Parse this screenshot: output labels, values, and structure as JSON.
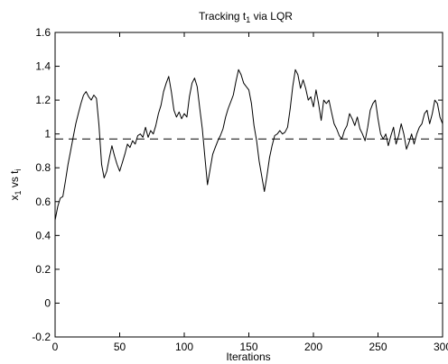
{
  "chart_data": {
    "type": "line",
    "title": "Tracking t",
    "title_sub": "1",
    "title_suffix": " via LQR",
    "xlabel": "Iterations",
    "ylabel_parts": [
      "x",
      "1",
      " vs t",
      "i"
    ],
    "xlim": [
      0,
      300
    ],
    "ylim": [
      -0.2,
      1.6
    ],
    "xticks": [
      0,
      50,
      100,
      150,
      200,
      250,
      300
    ],
    "yticks": [
      -0.2,
      0,
      0.2,
      0.4,
      0.6,
      0.8,
      1,
      1.2,
      1.4,
      1.6
    ],
    "ytick_labels": [
      "-0.2",
      "0",
      "0.2",
      "0.4",
      "0.6",
      "0.8",
      "1",
      "1.2",
      "1.4",
      "1.6"
    ],
    "grid": false,
    "series": [
      {
        "style": "solid",
        "color": "#000000",
        "points": [
          [
            0,
            0.49
          ],
          [
            2,
            0.57
          ],
          [
            4,
            0.62
          ],
          [
            6,
            0.63
          ],
          [
            8,
            0.72
          ],
          [
            10,
            0.82
          ],
          [
            12,
            0.9
          ],
          [
            14,
            0.98
          ],
          [
            16,
            1.06
          ],
          [
            18,
            1.12
          ],
          [
            20,
            1.18
          ],
          [
            22,
            1.23
          ],
          [
            24,
            1.25
          ],
          [
            26,
            1.22
          ],
          [
            28,
            1.2
          ],
          [
            30,
            1.23
          ],
          [
            32,
            1.21
          ],
          [
            34,
            1.05
          ],
          [
            36,
            0.82
          ],
          [
            38,
            0.74
          ],
          [
            40,
            0.78
          ],
          [
            42,
            0.86
          ],
          [
            44,
            0.93
          ],
          [
            46,
            0.87
          ],
          [
            48,
            0.82
          ],
          [
            50,
            0.78
          ],
          [
            52,
            0.83
          ],
          [
            54,
            0.88
          ],
          [
            56,
            0.94
          ],
          [
            58,
            0.92
          ],
          [
            60,
            0.96
          ],
          [
            62,
            0.94
          ],
          [
            64,
            0.99
          ],
          [
            66,
            1.0
          ],
          [
            68,
            0.98
          ],
          [
            70,
            1.04
          ],
          [
            72,
            0.98
          ],
          [
            74,
            1.02
          ],
          [
            76,
            1.0
          ],
          [
            78,
            1.05
          ],
          [
            80,
            1.12
          ],
          [
            82,
            1.17
          ],
          [
            84,
            1.25
          ],
          [
            86,
            1.3
          ],
          [
            88,
            1.34
          ],
          [
            90,
            1.25
          ],
          [
            92,
            1.14
          ],
          [
            94,
            1.1
          ],
          [
            96,
            1.13
          ],
          [
            98,
            1.09
          ],
          [
            100,
            1.12
          ],
          [
            102,
            1.1
          ],
          [
            104,
            1.22
          ],
          [
            106,
            1.3
          ],
          [
            108,
            1.33
          ],
          [
            110,
            1.28
          ],
          [
            112,
            1.15
          ],
          [
            114,
            1.03
          ],
          [
            116,
            0.86
          ],
          [
            118,
            0.7
          ],
          [
            120,
            0.79
          ],
          [
            122,
            0.88
          ],
          [
            124,
            0.92
          ],
          [
            126,
            0.96
          ],
          [
            128,
            0.99
          ],
          [
            130,
            1.03
          ],
          [
            132,
            1.1
          ],
          [
            134,
            1.15
          ],
          [
            136,
            1.19
          ],
          [
            138,
            1.23
          ],
          [
            140,
            1.31
          ],
          [
            142,
            1.38
          ],
          [
            144,
            1.35
          ],
          [
            146,
            1.3
          ],
          [
            148,
            1.28
          ],
          [
            150,
            1.26
          ],
          [
            152,
            1.18
          ],
          [
            154,
            1.05
          ],
          [
            156,
            0.96
          ],
          [
            158,
            0.84
          ],
          [
            160,
            0.75
          ],
          [
            162,
            0.66
          ],
          [
            164,
            0.75
          ],
          [
            166,
            0.86
          ],
          [
            168,
            0.93
          ],
          [
            170,
            0.99
          ],
          [
            172,
            1.0
          ],
          [
            174,
            1.02
          ],
          [
            176,
            1.0
          ],
          [
            178,
            1.01
          ],
          [
            180,
            1.04
          ],
          [
            182,
            1.15
          ],
          [
            184,
            1.28
          ],
          [
            186,
            1.38
          ],
          [
            188,
            1.35
          ],
          [
            190,
            1.27
          ],
          [
            192,
            1.32
          ],
          [
            194,
            1.27
          ],
          [
            196,
            1.2
          ],
          [
            198,
            1.22
          ],
          [
            200,
            1.16
          ],
          [
            202,
            1.26
          ],
          [
            204,
            1.18
          ],
          [
            206,
            1.08
          ],
          [
            208,
            1.2
          ],
          [
            210,
            1.18
          ],
          [
            212,
            1.2
          ],
          [
            214,
            1.13
          ],
          [
            216,
            1.06
          ],
          [
            218,
            1.03
          ],
          [
            220,
            0.99
          ],
          [
            222,
            0.97
          ],
          [
            224,
            1.02
          ],
          [
            226,
            1.05
          ],
          [
            228,
            1.12
          ],
          [
            230,
            1.09
          ],
          [
            232,
            1.05
          ],
          [
            234,
            1.1
          ],
          [
            236,
            1.03
          ],
          [
            238,
            1.0
          ],
          [
            240,
            0.96
          ],
          [
            242,
            1.04
          ],
          [
            244,
            1.14
          ],
          [
            246,
            1.18
          ],
          [
            248,
            1.2
          ],
          [
            250,
            1.09
          ],
          [
            252,
            1.0
          ],
          [
            254,
            0.97
          ],
          [
            256,
            1.0
          ],
          [
            258,
            0.93
          ],
          [
            260,
            0.99
          ],
          [
            262,
            1.04
          ],
          [
            264,
            0.94
          ],
          [
            266,
            0.99
          ],
          [
            268,
            1.06
          ],
          [
            270,
            1.0
          ],
          [
            272,
            0.91
          ],
          [
            274,
            0.95
          ],
          [
            276,
            1.0
          ],
          [
            278,
            0.94
          ],
          [
            280,
            1.0
          ],
          [
            282,
            1.04
          ],
          [
            284,
            1.06
          ],
          [
            286,
            1.12
          ],
          [
            288,
            1.14
          ],
          [
            290,
            1.06
          ],
          [
            292,
            1.12
          ],
          [
            294,
            1.2
          ],
          [
            296,
            1.18
          ],
          [
            298,
            1.1
          ],
          [
            300,
            1.06
          ]
        ]
      },
      {
        "style": "dashed",
        "color": "#000000",
        "points": [
          [
            0,
            0.97
          ],
          [
            300,
            0.97
          ]
        ]
      }
    ]
  }
}
